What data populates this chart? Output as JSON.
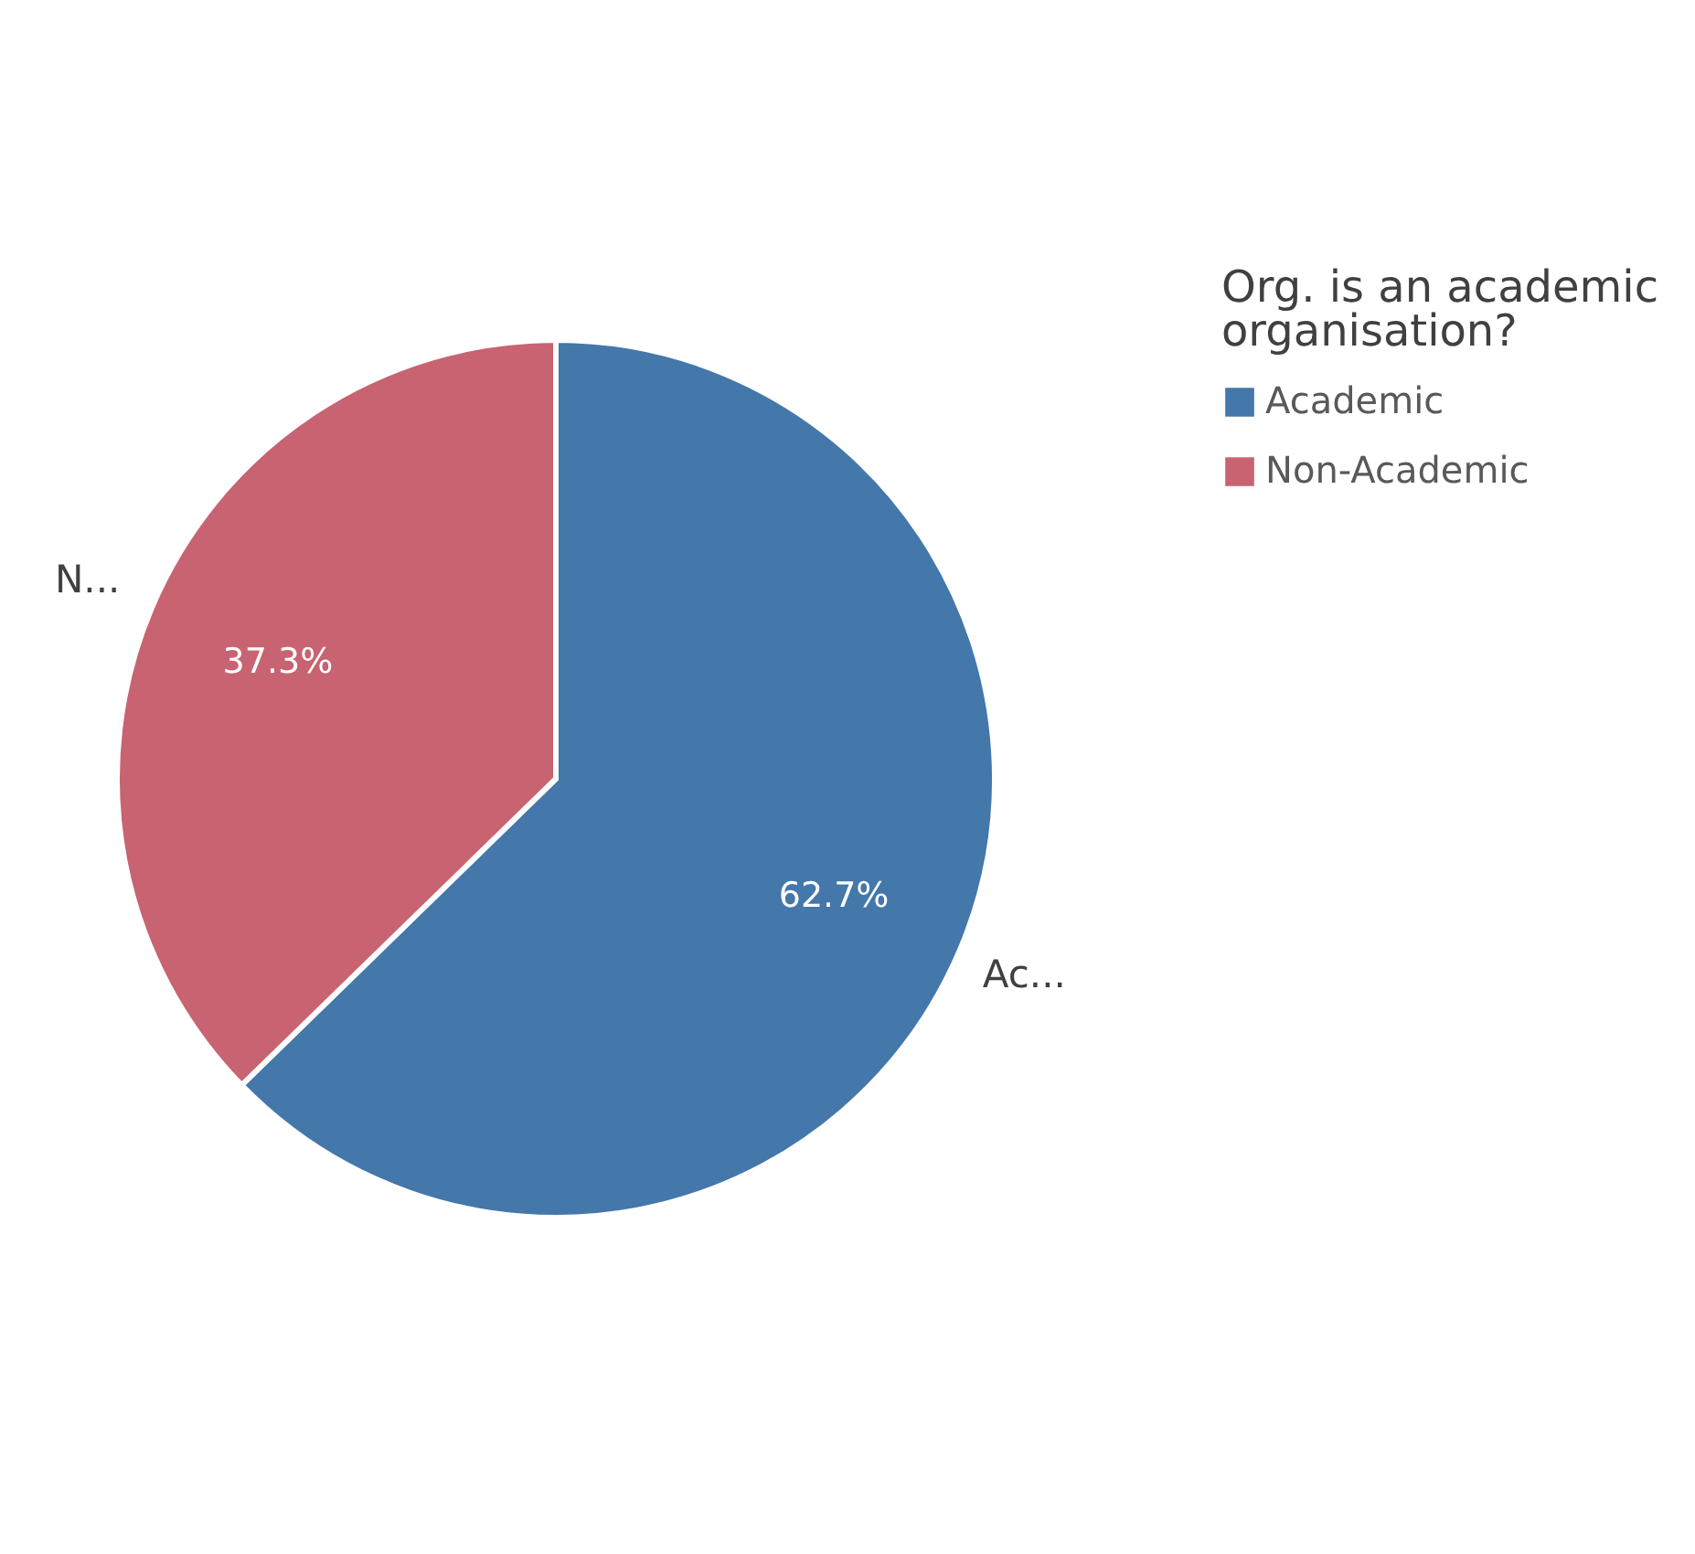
{
  "chart_data": {
    "type": "pie",
    "legend_title": "Org. is an academic organisation?",
    "categories": [
      "Academic",
      "Non-Academic"
    ],
    "values": [
      62.7,
      37.3
    ],
    "colors": [
      "#4477aa",
      "#c86371"
    ],
    "value_labels": [
      "62.7%",
      "37.3%"
    ],
    "annotations": [
      "Ac...",
      "N..."
    ],
    "legend": "top right"
  }
}
